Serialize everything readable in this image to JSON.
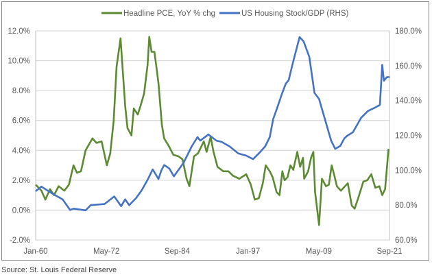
{
  "chart_data": {
    "type": "line",
    "title": "",
    "source": "Source: St. Louis Federal Reserve",
    "x_tick_labels": [
      "Jan-60",
      "May-72",
      "Sep-84",
      "Jan-97",
      "May-09",
      "Sep-21"
    ],
    "x_tick_years": [
      1960.0,
      1972.33,
      1984.67,
      1997.0,
      2009.33,
      2021.67
    ],
    "xlim": [
      1960.0,
      2021.67
    ],
    "y_left": {
      "ylim": [
        -2,
        12
      ],
      "ticks": [
        -2,
        0,
        2,
        4,
        6,
        8,
        10,
        12
      ],
      "tick_labels": [
        "-2.0%",
        "0.0%",
        "2.0%",
        "4.0%",
        "6.0%",
        "8.0%",
        "10.0%",
        "12.0%"
      ]
    },
    "y_right": {
      "ylim": [
        60,
        180
      ],
      "ticks": [
        60,
        80,
        100,
        120,
        140,
        160,
        180
      ],
      "tick_labels": [
        "60.0%",
        "80.0%",
        "100.0%",
        "120.0%",
        "140.0%",
        "160.0%",
        "180.0%"
      ]
    },
    "grid": true,
    "legend_position": "top-center",
    "colors": {
      "pce": "#5b8a32",
      "housing": "#4472c4"
    },
    "series": [
      {
        "name": "Headline PCE, YoY % chg",
        "axis": "left",
        "x": [
          1960,
          1961,
          1961.7,
          1962.5,
          1963.2,
          1964,
          1965,
          1965.8,
          1966.6,
          1967.2,
          1967.9,
          1968.7,
          1969.9,
          1970.6,
          1971.5,
          1972.4,
          1973,
          1973.6,
          1974.1,
          1974.8,
          1975.6,
          1976,
          1976.7,
          1977.1,
          1977.8,
          1978.3,
          1978.9,
          1979.5,
          1979.8,
          1980.2,
          1980.7,
          1981.4,
          1982,
          1982.4,
          1983.2,
          1984,
          1984.9,
          1985.6,
          1986.3,
          1986.8,
          1987.6,
          1988.3,
          1989.3,
          1989.8,
          1990.5,
          1991,
          1991.7,
          1992.7,
          1993.6,
          1994.4,
          1995.5,
          1996.7,
          1997.5,
          1998.2,
          1998.9,
          1999.6,
          2000.1,
          2000.8,
          2001.3,
          2002,
          2002.5,
          2003,
          2003.4,
          2003.9,
          2004.4,
          2004.9,
          2005.6,
          2006.1,
          2006.6,
          2006.8,
          2007.5,
          2008,
          2008.4,
          2008.7,
          2009.4,
          2009.9,
          2010.6,
          2011.1,
          2011.6,
          2012,
          2012.5,
          2013.2,
          2014.4,
          2015.1,
          2015.6,
          2016.3,
          2017.1,
          2017.8,
          2018.5,
          2019.2,
          2019.9,
          2020.4,
          2020.9,
          2021.5
        ],
        "y": [
          1.7,
          1.3,
          0.7,
          1.4,
          1.0,
          1.6,
          1.3,
          1.7,
          3.0,
          2.5,
          2.6,
          4.0,
          4.8,
          4.5,
          4.6,
          3.0,
          3.8,
          6.0,
          9.6,
          11.5,
          7.0,
          5.5,
          5.0,
          6.8,
          6.4,
          7.0,
          7.8,
          9.7,
          11.6,
          10.6,
          10.6,
          8.5,
          5.7,
          4.8,
          4.3,
          3.7,
          3.6,
          3.4,
          2.1,
          1.6,
          3.6,
          3.8,
          4.6,
          3.9,
          4.9,
          3.9,
          2.9,
          2.6,
          2.6,
          2.3,
          2.1,
          2.4,
          1.7,
          0.7,
          0.8,
          1.8,
          3.0,
          2.6,
          2.2,
          1.2,
          1.0,
          2.6,
          2.0,
          2.2,
          3.0,
          2.7,
          3.9,
          2.9,
          3.5,
          2.1,
          2.6,
          3.5,
          3.9,
          1.2,
          -1.0,
          2.1,
          1.6,
          1.7,
          3.0,
          2.4,
          1.6,
          1.3,
          1.8,
          0.3,
          0.1,
          0.9,
          1.9,
          2.0,
          2.4,
          1.5,
          1.6,
          1.0,
          1.4,
          4.1
        ]
      },
      {
        "name": "US Housing Stock/GDP (RHS)",
        "axis": "right",
        "x": [
          1960,
          1961,
          1963.2,
          1964.7,
          1966,
          1966.6,
          1968.7,
          1969.6,
          1972,
          1973.7,
          1974.9,
          1975.6,
          1976.3,
          1977.5,
          1978.5,
          1979.5,
          1980.4,
          1981.4,
          1981.9,
          1982.4,
          1983.3,
          1984.1,
          1985.8,
          1987.2,
          1988.2,
          1988.7,
          1990.1,
          1991.5,
          1992.4,
          1993.8,
          1995.3,
          1996.7,
          1997.9,
          1999.1,
          2000,
          2000.8,
          2001.4,
          2002.2,
          2002.9,
          2003.6,
          2004.1,
          2004.8,
          2006,
          2006.7,
          2007.7,
          2008.6,
          2009.4,
          2010.5,
          2011.5,
          2012.2,
          2013.1,
          2013.8,
          2014.3,
          2015.3,
          2016.7,
          2017.9,
          2019.3,
          2020,
          2020.4,
          2020.7,
          2021.2,
          2021.7
        ],
        "y": [
          88,
          90.6,
          86,
          83.3,
          77.2,
          78,
          77,
          80,
          80.6,
          85,
          79.4,
          83.3,
          80,
          84,
          88.6,
          94.5,
          100.5,
          95,
          99.8,
          103,
          101,
          96.5,
          104.4,
          113.7,
          119,
          117,
          120.5,
          117,
          116.3,
          113.7,
          109.7,
          108.4,
          106.4,
          110.4,
          113.7,
          119,
          129.4,
          136.8,
          143.6,
          149.7,
          151.7,
          161.2,
          176.4,
          174,
          165,
          144.4,
          140.9,
          128.4,
          117,
          112.3,
          114,
          118.3,
          119.8,
          121.8,
          130,
          134,
          136.2,
          137.5,
          160.5,
          151.4,
          153.4,
          153.5
        ]
      }
    ]
  }
}
